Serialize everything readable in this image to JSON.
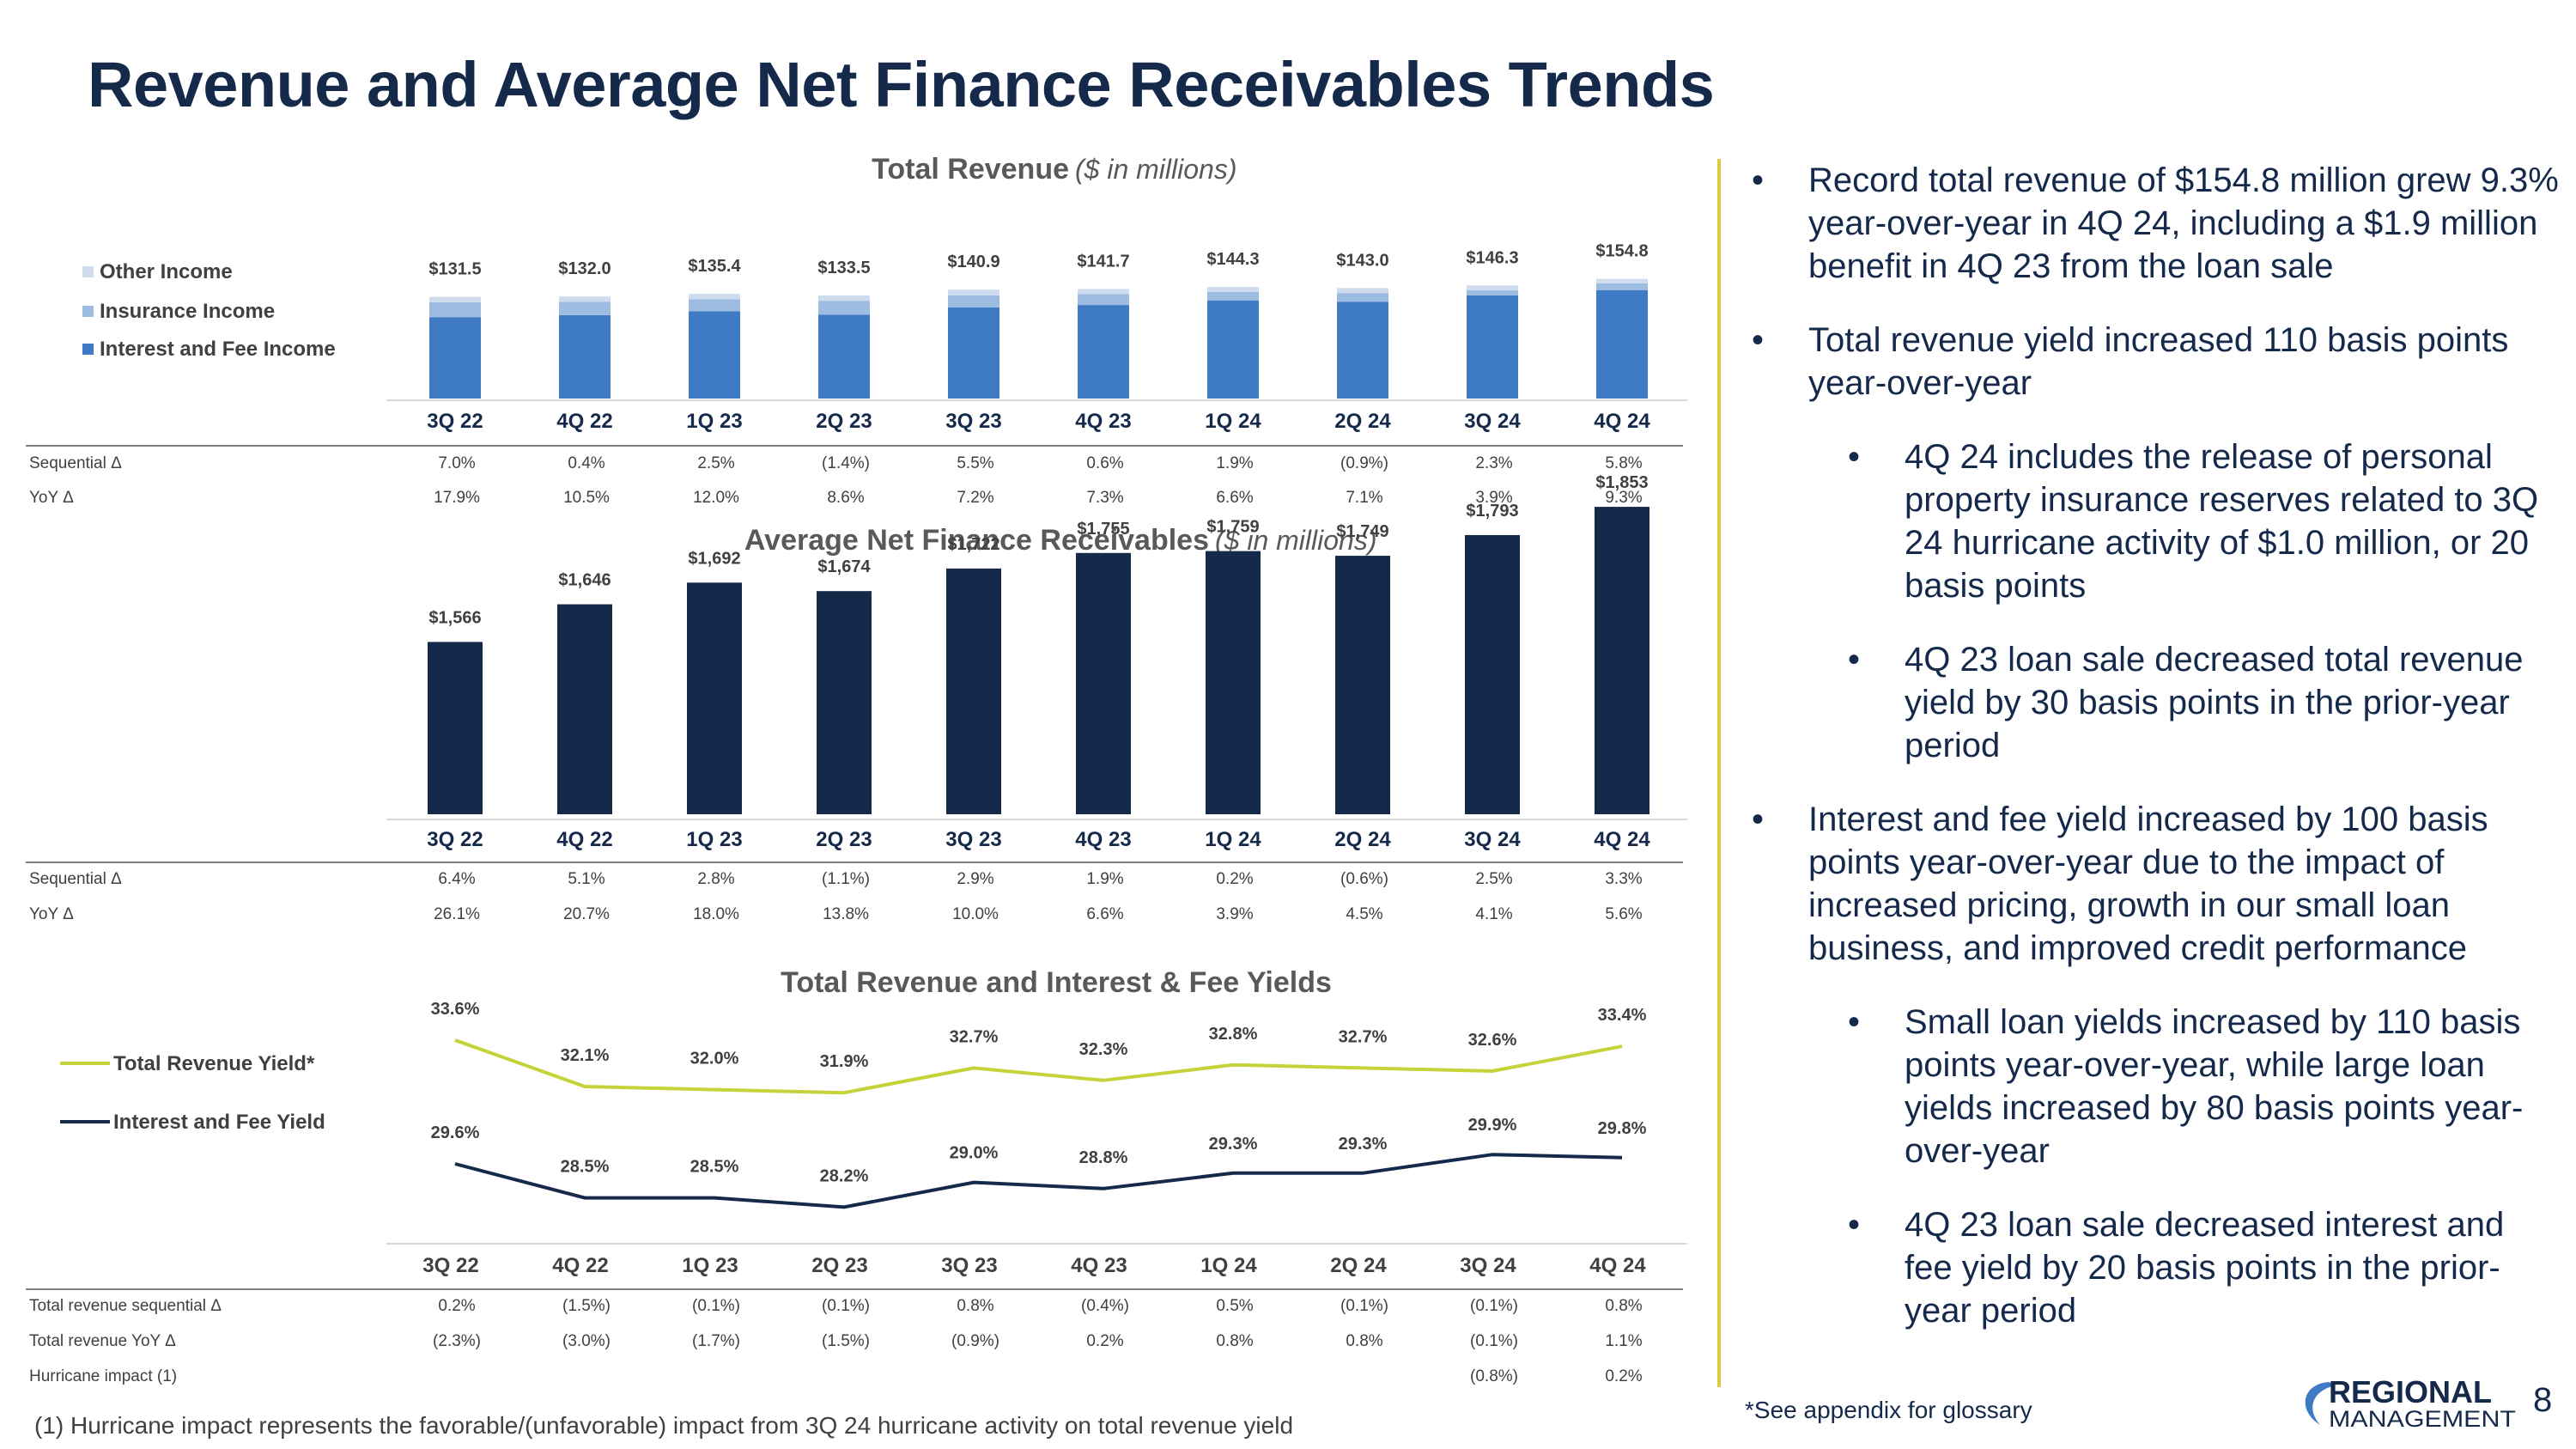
{
  "title": "Revenue and Average Net Finance Receivables Trends",
  "colors": {
    "navy": "#15294b",
    "interest_fee": "#3f7ac4",
    "insurance": "#9dbce2",
    "other": "#cfdcee",
    "revenue_yield": "#c5d33a",
    "accent_line": "#dccb3c"
  },
  "chart_data": [
    {
      "id": "total_revenue",
      "type": "bar",
      "stacked": true,
      "title": "Total Revenue",
      "subtitle": "($ in millions)",
      "categories": [
        "3Q 22",
        "4Q 22",
        "1Q 23",
        "2Q 23",
        "3Q 23",
        "4Q 23",
        "1Q 24",
        "2Q 24",
        "3Q 24",
        "4Q 24"
      ],
      "series": [
        {
          "name": "Interest and Fee Income",
          "values": [
            105.0,
            108.0,
            113.0,
            108.5,
            118.0,
            121.0,
            127.0,
            125.0,
            133.5,
            140.0
          ]
        },
        {
          "name": "Insurance Income",
          "values": [
            19.5,
            17.0,
            15.5,
            18.0,
            15.5,
            14.2,
            11.0,
            11.5,
            6.8,
            9.0
          ]
        },
        {
          "name": "Other Income",
          "values": [
            7.0,
            7.0,
            6.9,
            7.0,
            7.4,
            6.5,
            6.3,
            6.5,
            6.0,
            5.8
          ]
        }
      ],
      "totals": [
        "$131.5",
        "$132.0",
        "$135.4",
        "$133.5",
        "$140.9",
        "$141.7",
        "$144.3",
        "$143.0",
        "$146.3",
        "$154.8"
      ],
      "legend": [
        "Other Income",
        "Insurance Income",
        "Interest and Fee Income"
      ],
      "ylim": [
        0,
        175
      ]
    },
    {
      "id": "anr",
      "type": "bar",
      "title": "Average Net Finance Receivables",
      "subtitle": "($ in millions)",
      "categories": [
        "3Q 22",
        "4Q 22",
        "1Q 23",
        "2Q 23",
        "3Q 23",
        "4Q 23",
        "1Q 24",
        "2Q 24",
        "3Q 24",
        "4Q 24"
      ],
      "values": [
        1566,
        1646,
        1692,
        1674,
        1722,
        1755,
        1759,
        1749,
        1793,
        1853
      ],
      "labels": [
        "$1,566",
        "$1,646",
        "$1,692",
        "$1,674",
        "$1,722",
        "$1,755",
        "$1,759",
        "$1,749",
        "$1,793",
        "$1,853"
      ],
      "ylim": [
        0,
        2000
      ]
    },
    {
      "id": "yields",
      "type": "line",
      "title": "Total Revenue and Interest & Fee Yields",
      "categories": [
        "3Q 22",
        "4Q 22",
        "1Q 23",
        "2Q 23",
        "3Q 23",
        "4Q 23",
        "1Q 24",
        "2Q 24",
        "3Q 24",
        "4Q 24"
      ],
      "series": [
        {
          "name": "Total Revenue Yield*",
          "values": [
            33.6,
            32.1,
            32.0,
            31.9,
            32.7,
            32.3,
            32.8,
            32.7,
            32.6,
            33.4
          ],
          "labels": [
            "33.6%",
            "32.1%",
            "32.0%",
            "31.9%",
            "32.7%",
            "32.3%",
            "32.8%",
            "32.7%",
            "32.6%",
            "33.4%"
          ]
        },
        {
          "name": "Interest and Fee Yield",
          "values": [
            29.6,
            28.5,
            28.5,
            28.2,
            29.0,
            28.8,
            29.3,
            29.3,
            29.9,
            29.8
          ],
          "labels": [
            "29.6%",
            "28.5%",
            "28.5%",
            "28.2%",
            "29.0%",
            "28.8%",
            "29.3%",
            "29.3%",
            "29.9%",
            "29.8%"
          ]
        }
      ],
      "ylim": [
        24,
        36
      ]
    }
  ],
  "tables": [
    {
      "rows": [
        {
          "label": "Sequential Δ",
          "values": [
            "7.0%",
            "0.4%",
            "2.5%",
            "(1.4%)",
            "5.5%",
            "0.6%",
            "1.9%",
            "(0.9%)",
            "2.3%",
            "5.8%"
          ]
        },
        {
          "label": "YoY Δ",
          "values": [
            "17.9%",
            "10.5%",
            "12.0%",
            "8.6%",
            "7.2%",
            "7.3%",
            "6.6%",
            "7.1%",
            "3.9%",
            "9.3%"
          ]
        }
      ]
    },
    {
      "rows": [
        {
          "label": "Sequential Δ",
          "values": [
            "6.4%",
            "5.1%",
            "2.8%",
            "(1.1%)",
            "2.9%",
            "1.9%",
            "0.2%",
            "(0.6%)",
            "2.5%",
            "3.3%"
          ]
        },
        {
          "label": "YoY Δ",
          "values": [
            "26.1%",
            "20.7%",
            "18.0%",
            "13.8%",
            "10.0%",
            "6.6%",
            "3.9%",
            "4.5%",
            "4.1%",
            "5.6%"
          ]
        }
      ]
    },
    {
      "rows": [
        {
          "label": "Total revenue sequential Δ",
          "values": [
            "0.2%",
            "(1.5%)",
            "(0.1%)",
            "(0.1%)",
            "0.8%",
            "(0.4%)",
            "0.5%",
            "(0.1%)",
            "(0.1%)",
            "0.8%"
          ]
        },
        {
          "label": "Total revenue YoY Δ",
          "values": [
            "(2.3%)",
            "(3.0%)",
            "(1.7%)",
            "(1.5%)",
            "(0.9%)",
            "0.2%",
            "0.8%",
            "0.8%",
            "(0.1%)",
            "1.1%"
          ]
        },
        {
          "label": "Hurricane impact (1)",
          "values": [
            "",
            "",
            "",
            "",
            "",
            "",
            "",
            "",
            "(0.8%)",
            "0.2%"
          ]
        }
      ]
    }
  ],
  "bullets": [
    {
      "level": 1,
      "text": "Record total revenue of $154.8 million grew 9.3% year-over-year in 4Q 24, including a $1.9 million benefit in 4Q 23 from the loan sale"
    },
    {
      "level": 1,
      "text": "Total revenue yield increased 110 basis points year-over-year"
    },
    {
      "level": 2,
      "text": "4Q 24 includes the release of personal property insurance reserves related to 3Q 24 hurricane activity of $1.0 million, or 20 basis points"
    },
    {
      "level": 2,
      "text": "4Q 23 loan sale decreased total revenue yield by 30 basis points in the prior-year period"
    },
    {
      "level": 1,
      "text": "Interest and fee yield increased by 100 basis points year-over-year due to the impact of increased pricing, growth in our small loan business, and improved credit performance"
    },
    {
      "level": 2,
      "text": "Small loan yields increased by 110 basis points year-over-year, while large loan yields increased by 80 basis points year-over-year"
    },
    {
      "level": 2,
      "text": "4Q 23 loan sale decreased interest and fee yield by 20 basis points in the prior-year period"
    }
  ],
  "glossary_note": "*See appendix for glossary",
  "footnote": "(1) Hurricane impact represents the favorable/(unfavorable) impact from 3Q 24 hurricane activity on total revenue yield",
  "logo": {
    "line1": "REGIONAL",
    "line2": "MANAGEMENT"
  },
  "page_number": "8"
}
